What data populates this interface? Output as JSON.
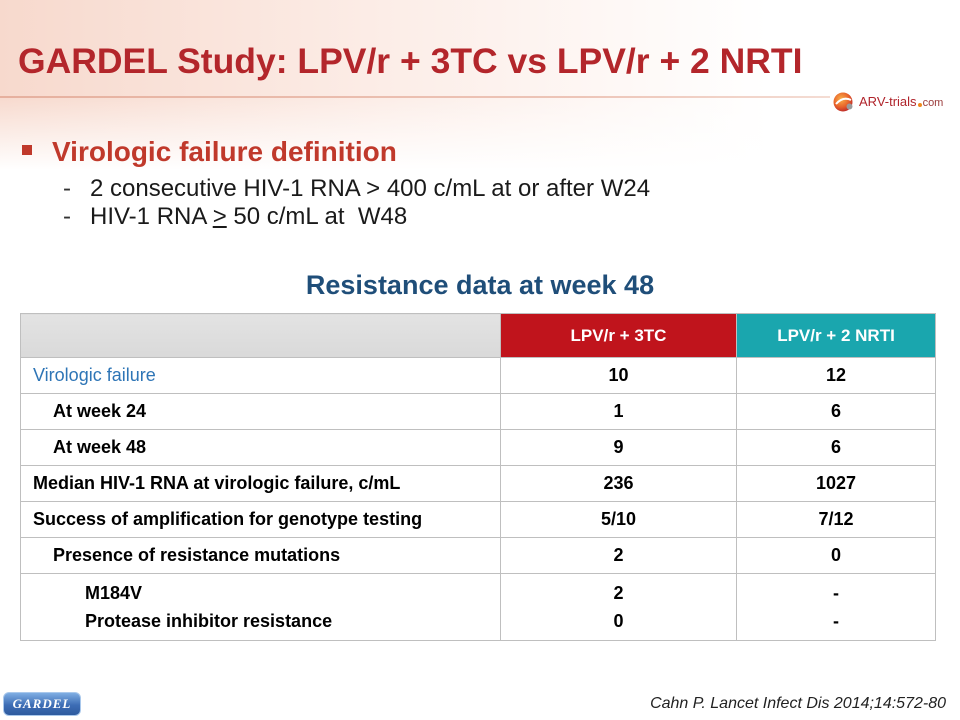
{
  "slide": {
    "title": "GARDEL Study: LPV/r + 3TC vs LPV/r + 2 NRTI",
    "logo": {
      "name": "ARV-trials",
      "suffix": "com"
    },
    "definition": {
      "heading": "Virologic failure definition",
      "items": [
        {
          "marker": "-",
          "text": "2 consecutive HIV-1 RNA > 400 c/mL at or after W24"
        },
        {
          "marker": "-",
          "text_before": "HIV-1 RNA ",
          "underlined_symbol": ">",
          "text_after": " 50 c/mL at  W48"
        }
      ]
    },
    "section_title": "Resistance data at week 48",
    "table": {
      "columns": [
        "LPV/r + 3TC",
        "LPV/r + 2 NRTI"
      ],
      "rows": [
        {
          "label": "Virologic failure",
          "values": [
            "10",
            "12"
          ]
        },
        {
          "label": "At week 24",
          "values": [
            "1",
            "6"
          ]
        },
        {
          "label": "At week 48",
          "values": [
            "9",
            "6"
          ]
        },
        {
          "label": "Median HIV-1 RNA at virologic failure, c/mL",
          "values": [
            "236",
            "1027"
          ]
        },
        {
          "label": "Success of amplification for genotype testing",
          "values": [
            "5/10",
            "7/12"
          ]
        },
        {
          "label": "Presence of resistance mutations",
          "values": [
            "2",
            "0"
          ]
        },
        {
          "lines": [
            {
              "label": "M184V",
              "values": [
                "2",
                "-"
              ]
            },
            {
              "label": "Protease inhibitor resistance",
              "values": [
                "0",
                "-"
              ]
            }
          ]
        }
      ]
    },
    "footer": {
      "badge": "GARDEL",
      "citation": "Cahn P. Lancet Infect Dis 2014;14:572-80"
    }
  },
  "icons": {
    "bullet": "square-bullet-icon",
    "logo": "arv-trials-logo-icon"
  },
  "colors": {
    "title": "#B3262B",
    "definition_heading": "#C0392B",
    "bullet": "#C0392B",
    "section_title": "#1F4E79",
    "header_blank": "#D9D9D9",
    "header_lpv_3tc": "#C0141C",
    "header_lpv_2nrti": "#1AA6AE",
    "row_highlight_label": "#2E75B6",
    "badge": "#3D6DB5"
  }
}
